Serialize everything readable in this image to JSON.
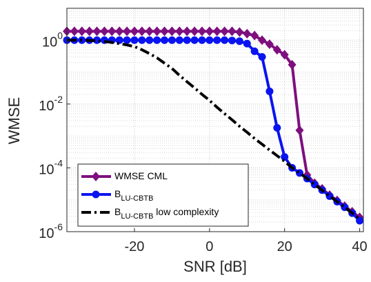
{
  "chart_data": {
    "type": "line",
    "xlabel": "SNR [dB]",
    "ylabel": "WMSE",
    "x": [
      -38,
      -36,
      -34,
      -32,
      -30,
      -28,
      -26,
      -24,
      -22,
      -20,
      -18,
      -16,
      -14,
      -12,
      -10,
      -8,
      -6,
      -4,
      -2,
      0,
      2,
      4,
      6,
      8,
      10,
      12,
      14,
      16,
      18,
      20,
      22,
      24,
      26,
      28,
      30,
      32,
      34,
      36,
      38,
      40
    ],
    "xlim": [
      -38,
      41
    ],
    "xticks": [
      -20,
      0,
      20,
      40
    ],
    "ylim": [
      1e-06,
      10
    ],
    "yscale": "log",
    "yticks": [
      {
        "value": 1e-06,
        "label": "10^-6"
      },
      {
        "value": 0.0001,
        "label": "10^-4"
      },
      {
        "value": 0.01,
        "label": "10^-2"
      },
      {
        "value": 1,
        "label": "10^0"
      }
    ],
    "grid": true,
    "minor_grid": true,
    "legend": "lower left",
    "series": [
      {
        "name": "WMSE CML",
        "color": "#7e0f7e",
        "marker": "diamond",
        "dash": "solid",
        "values": [
          1.9,
          1.9,
          1.9,
          1.9,
          1.9,
          1.9,
          1.9,
          1.9,
          1.9,
          1.9,
          1.9,
          1.9,
          1.9,
          1.9,
          1.9,
          1.9,
          1.9,
          1.9,
          1.9,
          1.9,
          1.9,
          1.9,
          1.9,
          1.8,
          1.6,
          1.4,
          1.0,
          0.75,
          0.5,
          0.35,
          0.17,
          0.0015,
          6e-05,
          3.3e-05,
          2.2e-05,
          1.4e-05,
          9.5e-06,
          6.3e-06,
          4.2e-06,
          2.8e-06
        ]
      },
      {
        "name": "B_{LU-CBTB}",
        "color": "#0a14f0",
        "marker": "circle",
        "dash": "solid",
        "values": [
          1,
          1,
          1,
          1,
          1,
          1,
          1,
          1,
          1,
          1,
          1,
          1,
          1,
          1,
          1,
          1,
          1,
          1,
          1,
          1,
          1,
          1,
          0.98,
          0.93,
          0.78,
          0.45,
          0.3,
          0.025,
          0.0018,
          0.00022,
          0.0001,
          6.9e-05,
          4.6e-05,
          3e-05,
          2e-05,
          1.3e-05,
          8.7e-06,
          5.8e-06,
          3.8e-06,
          2.2e-06
        ]
      },
      {
        "name": "B_{LU-CBTB} low complexity",
        "color": "#000000",
        "marker": "none",
        "dash": "dashdot",
        "values": [
          1,
          1,
          1,
          0.98,
          0.95,
          0.91,
          0.85,
          0.78,
          0.71,
          0.63,
          0.5,
          0.38,
          0.28,
          0.19,
          0.13,
          0.079,
          0.05,
          0.032,
          0.02,
          0.013,
          0.0079,
          0.005,
          0.0032,
          0.002,
          0.0013,
          0.00083,
          0.00055,
          0.00036,
          0.00024,
          0.00016,
          0.0001,
          6.9e-05,
          4.6e-05,
          3e-05,
          2e-05,
          1.3e-05,
          8.7e-06,
          5.8e-06,
          3.8e-06,
          2.5e-06
        ]
      }
    ]
  }
}
